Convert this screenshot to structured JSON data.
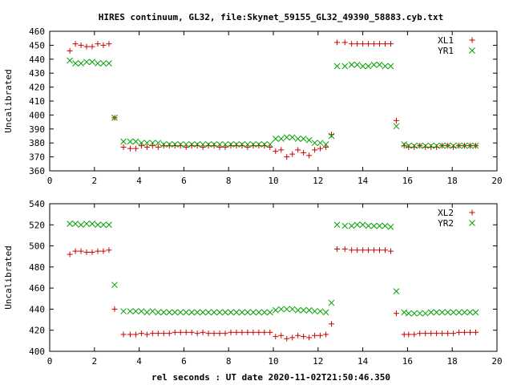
{
  "figure_title": "HIRES continuum, GL32, file:Skynet_59155_GL32_49390_58883.cyb.txt",
  "chart_data": [
    {
      "type": "scatter",
      "title": "",
      "xlabel": "",
      "ylabel": "Uncalibrated",
      "xlim": [
        0,
        20
      ],
      "ylim": [
        360,
        460
      ],
      "xticks": [
        0,
        2,
        4,
        6,
        8,
        10,
        12,
        14,
        16,
        18,
        20
      ],
      "yticks": [
        360,
        370,
        380,
        390,
        400,
        410,
        420,
        430,
        440,
        450,
        460
      ],
      "grid": false,
      "legend": "top-right",
      "series": [
        {
          "name": "XL1",
          "color": "#cc0000",
          "marker": "plus",
          "x": [
            0.9,
            1.15,
            1.4,
            1.65,
            1.9,
            2.15,
            2.4,
            2.65,
            2.9,
            3.3,
            3.6,
            3.85,
            4.1,
            4.35,
            4.6,
            4.85,
            5.1,
            5.35,
            5.6,
            5.85,
            6.1,
            6.35,
            6.6,
            6.85,
            7.1,
            7.35,
            7.6,
            7.85,
            8.1,
            8.35,
            8.6,
            8.85,
            9.1,
            9.35,
            9.6,
            9.85,
            10.1,
            10.35,
            10.6,
            10.85,
            11.1,
            11.35,
            11.6,
            11.85,
            12.1,
            12.35,
            12.6,
            12.85,
            13.2,
            13.5,
            13.75,
            14.0,
            14.25,
            14.5,
            14.75,
            15.0,
            15.25,
            15.5,
            15.85,
            16.05,
            16.3,
            16.55,
            16.8,
            17.05,
            17.3,
            17.55,
            17.8,
            18.05,
            18.3,
            18.55,
            18.8,
            19.05
          ],
          "y": [
            446,
            451,
            450,
            449,
            449,
            451,
            450,
            451,
            398,
            377,
            376,
            376,
            378,
            377,
            378,
            377,
            378,
            378,
            378,
            378,
            377,
            378,
            378,
            377,
            378,
            378,
            377,
            377,
            378,
            378,
            378,
            377,
            378,
            378,
            378,
            377,
            374,
            375,
            370,
            372,
            375,
            373,
            371,
            375,
            376,
            377,
            386,
            452,
            452,
            451,
            451,
            451,
            451,
            451,
            451,
            451,
            451,
            396,
            378,
            377,
            377,
            378,
            377,
            377,
            377,
            378,
            378,
            377,
            378,
            378,
            378,
            378
          ]
        },
        {
          "name": "YR1",
          "color": "#00a000",
          "marker": "cross",
          "x": [
            0.9,
            1.15,
            1.4,
            1.65,
            1.9,
            2.15,
            2.4,
            2.65,
            2.9,
            3.3,
            3.6,
            3.85,
            4.1,
            4.35,
            4.6,
            4.85,
            5.1,
            5.35,
            5.6,
            5.85,
            6.1,
            6.35,
            6.6,
            6.85,
            7.1,
            7.35,
            7.6,
            7.85,
            8.1,
            8.35,
            8.6,
            8.85,
            9.1,
            9.35,
            9.6,
            9.85,
            10.1,
            10.35,
            10.6,
            10.85,
            11.1,
            11.35,
            11.6,
            11.85,
            12.1,
            12.35,
            12.6,
            12.85,
            13.2,
            13.5,
            13.75,
            14.0,
            14.25,
            14.5,
            14.75,
            15.0,
            15.25,
            15.5,
            15.85,
            16.05,
            16.3,
            16.55,
            16.8,
            17.05,
            17.3,
            17.55,
            17.8,
            18.05,
            18.3,
            18.55,
            18.8,
            19.05
          ],
          "y": [
            439,
            437,
            437,
            438,
            438,
            437,
            437,
            437,
            398,
            381,
            381,
            381,
            380,
            380,
            380,
            380,
            379,
            379,
            379,
            379,
            379,
            379,
            379,
            379,
            379,
            379,
            379,
            379,
            379,
            379,
            379,
            379,
            379,
            379,
            379,
            379,
            383,
            383,
            384,
            384,
            383,
            383,
            382,
            380,
            380,
            379,
            385,
            435,
            435,
            436,
            436,
            435,
            435,
            436,
            436,
            435,
            435,
            392,
            379,
            378,
            378,
            378,
            378,
            378,
            378,
            378,
            378,
            378,
            378,
            378,
            378,
            378
          ]
        }
      ]
    },
    {
      "type": "scatter",
      "title": "",
      "xlabel": "rel seconds : UT date 2020-11-02T21:50:46.350",
      "ylabel": "Uncalibrated",
      "xlim": [
        0,
        20
      ],
      "ylim": [
        400,
        540
      ],
      "xticks": [
        0,
        2,
        4,
        6,
        8,
        10,
        12,
        14,
        16,
        18,
        20
      ],
      "yticks": [
        400,
        420,
        440,
        460,
        480,
        500,
        520,
        540
      ],
      "grid": false,
      "legend": "top-right",
      "series": [
        {
          "name": "XL2",
          "color": "#cc0000",
          "marker": "plus",
          "x": [
            0.9,
            1.15,
            1.4,
            1.65,
            1.9,
            2.15,
            2.4,
            2.65,
            2.9,
            3.3,
            3.6,
            3.85,
            4.1,
            4.35,
            4.6,
            4.85,
            5.1,
            5.35,
            5.6,
            5.85,
            6.1,
            6.35,
            6.6,
            6.85,
            7.1,
            7.35,
            7.6,
            7.85,
            8.1,
            8.35,
            8.6,
            8.85,
            9.1,
            9.35,
            9.6,
            9.85,
            10.1,
            10.35,
            10.6,
            10.85,
            11.1,
            11.35,
            11.6,
            11.85,
            12.1,
            12.35,
            12.6,
            12.85,
            13.2,
            13.5,
            13.75,
            14.0,
            14.25,
            14.5,
            14.75,
            15.0,
            15.25,
            15.5,
            15.85,
            16.05,
            16.3,
            16.55,
            16.8,
            17.05,
            17.3,
            17.55,
            17.8,
            18.05,
            18.3,
            18.55,
            18.8,
            19.05
          ],
          "y": [
            492,
            495,
            495,
            494,
            494,
            495,
            495,
            496,
            440,
            416,
            416,
            416,
            417,
            416,
            417,
            417,
            417,
            417,
            418,
            418,
            418,
            418,
            417,
            418,
            417,
            417,
            417,
            417,
            418,
            418,
            418,
            418,
            418,
            418,
            418,
            418,
            414,
            415,
            412,
            413,
            415,
            414,
            413,
            415,
            415,
            416,
            426,
            497,
            497,
            496,
            496,
            496,
            496,
            496,
            496,
            496,
            495,
            436,
            416,
            416,
            416,
            417,
            417,
            417,
            417,
            417,
            417,
            417,
            418,
            418,
            418,
            418
          ]
        },
        {
          "name": "YR2",
          "color": "#00a000",
          "marker": "cross",
          "x": [
            0.9,
            1.15,
            1.4,
            1.65,
            1.9,
            2.15,
            2.4,
            2.65,
            2.9,
            3.3,
            3.6,
            3.85,
            4.1,
            4.35,
            4.6,
            4.85,
            5.1,
            5.35,
            5.6,
            5.85,
            6.1,
            6.35,
            6.6,
            6.85,
            7.1,
            7.35,
            7.6,
            7.85,
            8.1,
            8.35,
            8.6,
            8.85,
            9.1,
            9.35,
            9.6,
            9.85,
            10.1,
            10.35,
            10.6,
            10.85,
            11.1,
            11.35,
            11.6,
            11.85,
            12.1,
            12.35,
            12.6,
            12.85,
            13.2,
            13.5,
            13.75,
            14.0,
            14.25,
            14.5,
            14.75,
            15.0,
            15.25,
            15.5,
            15.85,
            16.05,
            16.3,
            16.55,
            16.8,
            17.05,
            17.3,
            17.55,
            17.8,
            18.05,
            18.3,
            18.55,
            18.8,
            19.05
          ],
          "y": [
            521,
            521,
            520,
            521,
            521,
            520,
            520,
            520,
            463,
            438,
            438,
            438,
            438,
            437,
            438,
            437,
            437,
            437,
            437,
            437,
            437,
            437,
            437,
            437,
            437,
            437,
            437,
            437,
            437,
            437,
            437,
            437,
            437,
            437,
            437,
            437,
            439,
            440,
            440,
            440,
            439,
            439,
            439,
            438,
            438,
            437,
            446,
            520,
            519,
            519,
            520,
            520,
            519,
            519,
            519,
            519,
            518,
            457,
            437,
            436,
            436,
            436,
            436,
            437,
            437,
            437,
            437,
            437,
            437,
            437,
            437,
            437
          ]
        }
      ]
    }
  ]
}
